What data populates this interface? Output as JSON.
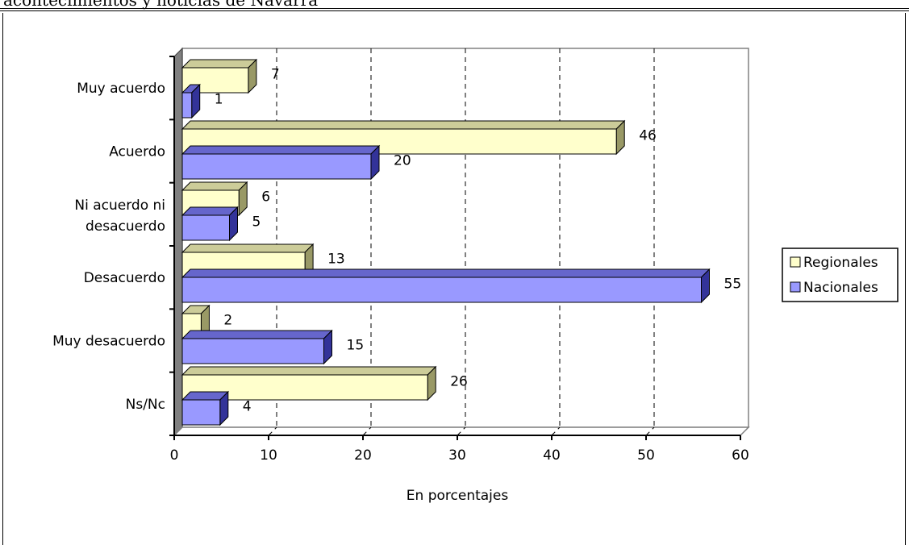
{
  "caption": "acontecimientos y noticias de Navarra",
  "chart_data": {
    "type": "bar",
    "orientation": "horizontal",
    "categories": [
      "Muy acuerdo",
      "Acuerdo",
      "Ni acuerdo ni desacuerdo",
      "Desacuerdo",
      "Muy desacuerdo",
      "Ns/Nc"
    ],
    "series": [
      {
        "name": "Regionales",
        "values": [
          7,
          46,
          6,
          13,
          2,
          26
        ],
        "color": "#ffffcc"
      },
      {
        "name": "Nacionales",
        "values": [
          1,
          20,
          5,
          55,
          15,
          4
        ],
        "color": "#9999ff"
      }
    ],
    "xlabel": "En porcentajes",
    "xlim": [
      0,
      60
    ],
    "xticks": [
      "0",
      "10",
      "20",
      "30",
      "40",
      "50",
      "60"
    ],
    "grid": "vertical dashed",
    "legend_position": "right"
  }
}
